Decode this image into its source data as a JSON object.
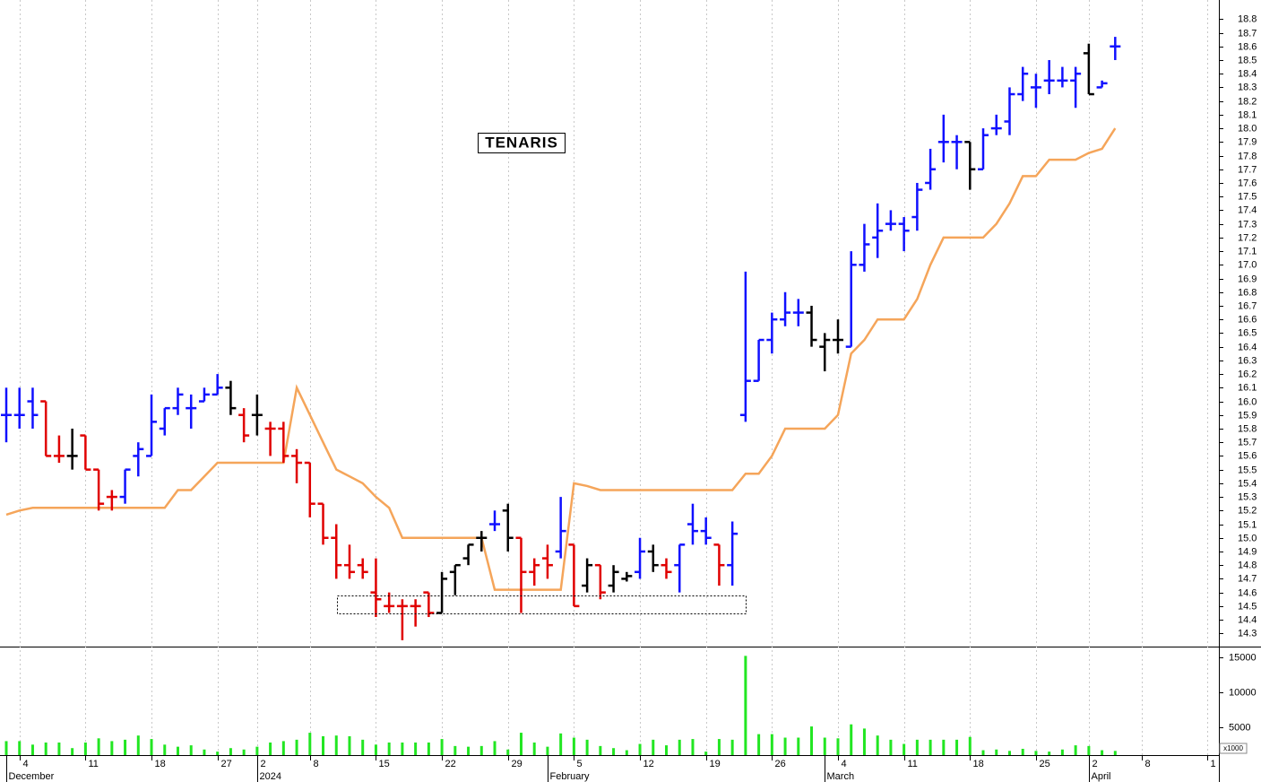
{
  "chart_data": {
    "type": "ohlc",
    "title": "TENARIS",
    "categories": [
      null,
      "4",
      null,
      null,
      null,
      null,
      "11",
      null,
      null,
      null,
      null,
      "18",
      null,
      null,
      null,
      null,
      "27",
      null,
      null,
      "2",
      null,
      null,
      null,
      "8",
      null,
      null,
      null,
      null,
      "15",
      null,
      null,
      null,
      null,
      "22",
      null,
      null,
      null,
      null,
      "29",
      null,
      null,
      null,
      null,
      "5",
      null,
      null,
      null,
      null,
      "12",
      null,
      null,
      null,
      null,
      "19",
      null,
      null,
      null,
      null,
      "26",
      null,
      null,
      null,
      null,
      "4",
      null,
      null,
      null,
      null,
      "11",
      null,
      null,
      null,
      null,
      "18",
      null,
      null,
      null,
      null,
      "25",
      null,
      null,
      null,
      "2",
      null,
      null,
      null,
      "8",
      null,
      null,
      null,
      null,
      "1"
    ],
    "month_labels": [
      "December",
      null,
      null,
      null,
      null,
      null,
      null,
      null,
      null,
      null,
      null,
      null,
      null,
      null,
      null,
      null,
      null,
      null,
      null,
      "2024",
      null,
      null,
      null,
      null,
      null,
      null,
      null,
      null,
      null,
      null,
      null,
      null,
      null,
      null,
      null,
      null,
      null,
      null,
      null,
      null,
      null,
      "February",
      null,
      null,
      null,
      null,
      null,
      null,
      null,
      null,
      null,
      null,
      null,
      null,
      null,
      null,
      null,
      null,
      null,
      null,
      null,
      null,
      "March",
      null,
      null,
      null,
      null,
      null,
      null,
      null,
      null,
      null,
      null,
      null,
      null,
      null,
      null,
      null,
      null,
      null,
      null,
      null,
      "April",
      null,
      null,
      null,
      null,
      null,
      null,
      null,
      null,
      null
    ],
    "open": [
      15.9,
      15.9,
      16.0,
      16.0,
      15.6,
      15.6,
      15.75,
      15.5,
      15.3,
      15.3,
      15.6,
      15.6,
      15.8,
      15.95,
      15.95,
      16.0,
      16.05,
      16.1,
      15.9,
      15.9,
      15.8,
      15.8,
      15.6,
      15.55,
      15.25,
      15.0,
      14.8,
      14.8,
      14.6,
      14.5,
      14.5,
      14.5,
      14.6,
      14.45,
      14.75,
      14.85,
      15.0,
      15.1,
      15.2,
      15.0,
      14.75,
      14.85,
      14.9,
      14.95,
      14.65,
      14.8,
      14.65,
      14.7,
      14.75,
      14.9,
      14.8,
      14.8,
      15.1,
      15.05,
      14.95,
      14.8,
      15.9,
      16.15,
      16.45,
      16.6,
      16.65,
      16.65,
      16.4,
      16.45,
      16.4,
      17.0,
      17.2,
      17.3,
      17.3,
      17.35,
      17.6,
      17.9,
      17.9,
      17.9,
      17.7,
      18.0,
      18.05,
      18.25,
      18.3,
      18.35,
      18.35,
      18.35,
      18.55,
      18.3,
      18.6,
      null,
      null,
      null,
      null,
      null,
      null,
      null
    ],
    "high": [
      16.1,
      16.1,
      16.1,
      16.0,
      15.75,
      15.8,
      15.75,
      15.5,
      15.35,
      15.5,
      15.7,
      16.05,
      15.95,
      16.1,
      16.05,
      16.1,
      16.2,
      16.15,
      15.95,
      16.05,
      15.85,
      15.85,
      15.65,
      15.55,
      15.25,
      15.1,
      14.95,
      14.85,
      14.85,
      14.6,
      14.55,
      14.55,
      14.6,
      14.75,
      14.8,
      14.95,
      15.05,
      15.2,
      15.25,
      15.0,
      14.85,
      14.95,
      15.3,
      14.95,
      14.85,
      14.8,
      14.8,
      14.75,
      15.0,
      14.95,
      14.85,
      14.95,
      15.25,
      15.15,
      14.95,
      15.12,
      16.95,
      16.45,
      16.65,
      16.8,
      16.75,
      16.7,
      16.5,
      16.6,
      17.1,
      17.3,
      17.45,
      17.4,
      17.35,
      17.6,
      17.85,
      18.1,
      17.95,
      17.9,
      18.0,
      18.1,
      18.3,
      18.45,
      18.4,
      18.5,
      18.45,
      18.45,
      18.62,
      18.35,
      18.67,
      null,
      null,
      null,
      null,
      null,
      null,
      null
    ],
    "low": [
      15.7,
      15.8,
      15.8,
      15.6,
      15.55,
      15.5,
      15.5,
      15.2,
      15.2,
      15.25,
      15.45,
      15.6,
      15.75,
      15.9,
      15.8,
      16.0,
      16.05,
      15.9,
      15.7,
      15.75,
      15.6,
      15.55,
      15.4,
      15.15,
      14.95,
      14.7,
      14.7,
      14.7,
      14.42,
      14.45,
      14.25,
      14.35,
      14.42,
      14.45,
      14.58,
      14.8,
      14.9,
      15.05,
      14.9,
      14.45,
      14.65,
      14.7,
      14.85,
      14.5,
      14.6,
      14.55,
      14.6,
      14.68,
      14.7,
      14.75,
      14.7,
      14.6,
      14.95,
      14.95,
      14.65,
      14.65,
      15.85,
      16.15,
      16.35,
      16.55,
      16.55,
      16.4,
      16.22,
      16.35,
      16.4,
      16.95,
      17.05,
      17.25,
      17.1,
      17.25,
      17.55,
      17.75,
      17.7,
      17.55,
      17.7,
      17.95,
      17.95,
      18.2,
      18.15,
      18.25,
      18.3,
      18.15,
      18.25,
      18.3,
      18.5,
      null,
      null,
      null,
      null,
      null,
      null,
      null
    ],
    "close": [
      15.9,
      15.9,
      15.9,
      15.6,
      15.6,
      15.6,
      15.5,
      15.25,
      15.3,
      15.5,
      15.65,
      15.85,
      15.95,
      16.05,
      15.95,
      16.05,
      16.1,
      15.95,
      15.75,
      15.9,
      15.8,
      15.6,
      15.55,
      15.25,
      15.0,
      14.8,
      14.75,
      14.75,
      14.55,
      14.5,
      14.5,
      14.5,
      14.45,
      14.7,
      14.8,
      14.95,
      15.0,
      15.1,
      15.0,
      14.75,
      14.8,
      14.8,
      15.05,
      14.5,
      14.8,
      14.6,
      14.75,
      14.72,
      14.9,
      14.8,
      14.75,
      14.95,
      15.05,
      15.0,
      14.8,
      15.03,
      16.15,
      16.45,
      16.6,
      16.65,
      16.65,
      16.45,
      16.45,
      16.45,
      17.0,
      17.15,
      17.25,
      17.3,
      17.25,
      17.55,
      17.7,
      17.9,
      17.9,
      17.7,
      17.95,
      18.0,
      18.25,
      18.4,
      18.3,
      18.35,
      18.35,
      18.4,
      18.25,
      18.33,
      18.6,
      null,
      null,
      null,
      null,
      null,
      null,
      null
    ],
    "colors": [
      "#1010ff",
      "#1010ff",
      "#1010ff",
      "#e00000",
      "#e00000",
      "#000000",
      "#e00000",
      "#e00000",
      "#e00000",
      "#1010ff",
      "#1010ff",
      "#1010ff",
      "#1010ff",
      "#1010ff",
      "#1010ff",
      "#1010ff",
      "#1010ff",
      "#000000",
      "#e00000",
      "#000000",
      "#e00000",
      "#e00000",
      "#e00000",
      "#e00000",
      "#e00000",
      "#e00000",
      "#e00000",
      "#e00000",
      "#e00000",
      "#e00000",
      "#e00000",
      "#e00000",
      "#e00000",
      "#000000",
      "#000000",
      "#000000",
      "#000000",
      "#1010ff",
      "#000000",
      "#e00000",
      "#e00000",
      "#e00000",
      "#1010ff",
      "#e00000",
      "#000000",
      "#e00000",
      "#000000",
      "#000000",
      "#1010ff",
      "#000000",
      "#e00000",
      "#1010ff",
      "#1010ff",
      "#1010ff",
      "#e00000",
      "#1010ff",
      "#1010ff",
      "#1010ff",
      "#1010ff",
      "#1010ff",
      "#1010ff",
      "#000000",
      "#000000",
      "#000000",
      "#1010ff",
      "#1010ff",
      "#1010ff",
      "#1010ff",
      "#1010ff",
      "#1010ff",
      "#1010ff",
      "#1010ff",
      "#1010ff",
      "#000000",
      "#1010ff",
      "#1010ff",
      "#1010ff",
      "#1010ff",
      "#1010ff",
      "#1010ff",
      "#1010ff",
      "#1010ff",
      "#000000",
      "#1010ff",
      "#1010ff",
      null,
      null,
      null,
      null,
      null,
      null,
      null
    ],
    "stop_line": {
      "color": "#f5a55a",
      "values": [
        15.17,
        15.2,
        15.22,
        15.22,
        15.22,
        15.22,
        15.22,
        15.22,
        15.22,
        15.22,
        15.22,
        15.22,
        15.22,
        15.35,
        15.35,
        15.45,
        15.55,
        15.55,
        15.55,
        15.55,
        15.55,
        15.55,
        16.1,
        15.9,
        15.7,
        15.5,
        15.45,
        15.4,
        15.3,
        15.22,
        15.0,
        15.0,
        15.0,
        15.0,
        15.0,
        15.0,
        15.0,
        14.62,
        14.62,
        14.62,
        14.62,
        14.62,
        14.62,
        15.4,
        15.38,
        15.35,
        15.35,
        15.35,
        15.35,
        15.35,
        15.35,
        15.35,
        15.35,
        15.35,
        15.35,
        15.35,
        15.47,
        15.47,
        15.6,
        15.8,
        15.8,
        15.8,
        15.8,
        15.9,
        16.35,
        16.45,
        16.6,
        16.6,
        16.6,
        16.75,
        17.0,
        17.2,
        17.2,
        17.2,
        17.2,
        17.3,
        17.45,
        17.65,
        17.65,
        17.77,
        17.77,
        17.77,
        17.82,
        17.85,
        18.0,
        null,
        null,
        null,
        null,
        null,
        null,
        null
      ]
    },
    "ylim": [
      14.21,
      18.94
    ],
    "yticks": [
      14.3,
      14.4,
      14.5,
      14.6,
      14.7,
      14.8,
      14.9,
      {
        "value": 15,
        "label": "15.0"
      },
      15.1,
      15.2,
      15.3,
      15.4,
      15.5,
      15.6,
      15.7,
      15.8,
      15.9,
      {
        "value": 16,
        "label": "16.0"
      },
      16.1,
      16.2,
      16.3,
      16.4,
      16.5,
      16.6,
      16.7,
      16.8,
      16.9,
      {
        "value": 17,
        "label": "17.0"
      },
      17.1,
      17.2,
      17.3,
      17.4,
      17.5,
      17.6,
      17.7,
      17.8,
      17.9,
      {
        "value": 18,
        "label": "18.0"
      },
      18.1,
      18.2,
      18.3,
      18.4,
      18.5,
      18.6,
      18.7,
      18.8
    ],
    "volume": {
      "color": "#22e622",
      "unit_label": "x1000",
      "ylim": [
        1000,
        16400
      ],
      "yticks": [
        5000,
        10000,
        15000
      ],
      "values": [
        3000,
        3000,
        2500,
        2800,
        2800,
        2000,
        2800,
        3400,
        3000,
        3200,
        3800,
        3300,
        2500,
        2200,
        2400,
        1800,
        1500,
        2000,
        1800,
        2200,
        2800,
        3000,
        3200,
        4200,
        3700,
        3800,
        3700,
        3200,
        2500,
        2800,
        2800,
        2800,
        2800,
        3300,
        2300,
        2200,
        2300,
        3000,
        1800,
        4200,
        2800,
        2200,
        4100,
        3500,
        3200,
        2300,
        2000,
        1700,
        2600,
        3200,
        2400,
        3200,
        3300,
        1500,
        3300,
        3200,
        15200,
        4000,
        4000,
        3500,
        3500,
        5100,
        3500,
        3400,
        5400,
        4800,
        3800,
        3200,
        2600,
        3200,
        3200,
        3200,
        3200,
        3600,
        1700,
        1800,
        1600,
        1900,
        1600,
        1500,
        1800,
        2400,
        2300,
        1700,
        1600,
        null,
        null,
        null,
        null,
        null,
        null,
        null
      ]
    }
  }
}
